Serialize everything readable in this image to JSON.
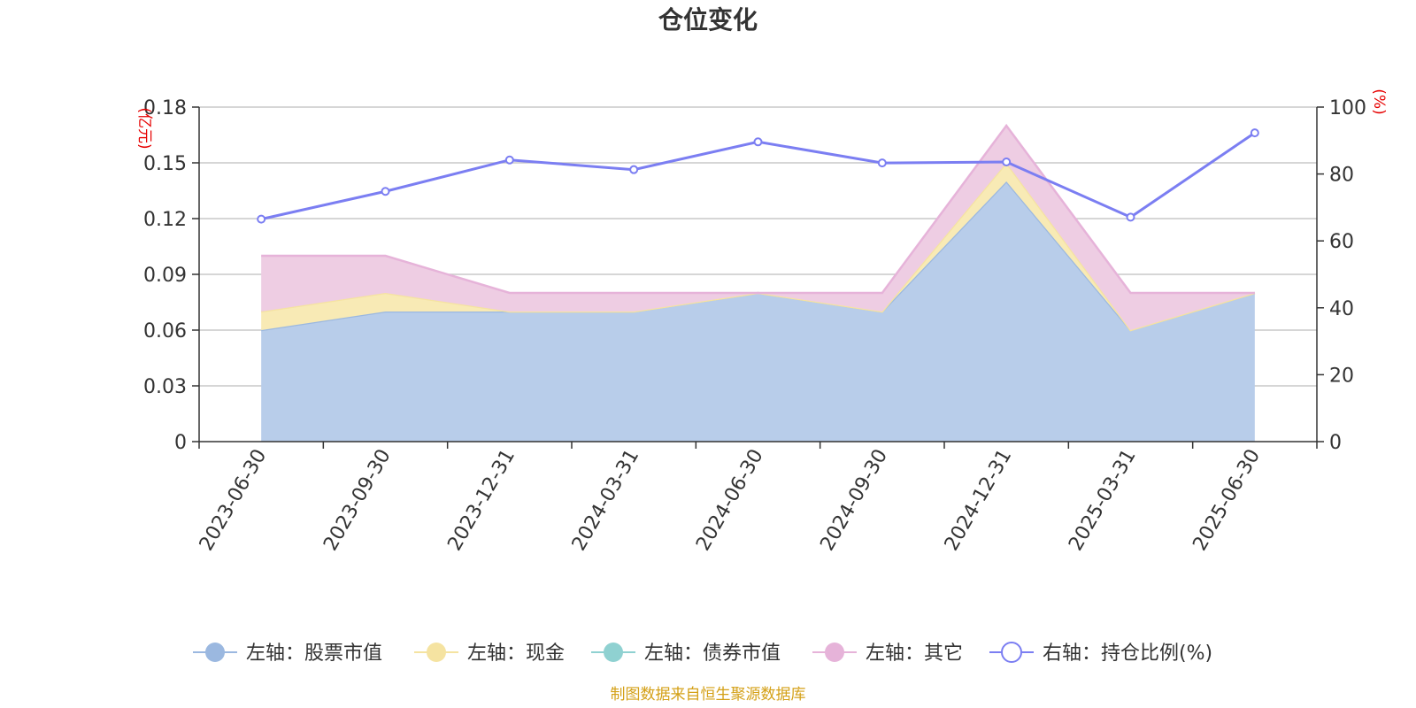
{
  "chart_data": {
    "type": "area",
    "title": "仓位变化",
    "categories": [
      "2023-06-30",
      "2023-09-30",
      "2023-12-31",
      "2024-03-31",
      "2024-06-30",
      "2024-09-30",
      "2024-12-31",
      "2025-03-31",
      "2025-06-30"
    ],
    "left_axis": {
      "unit": "(亿元)",
      "ticks": [
        "0",
        "0.03",
        "0.06",
        "0.09",
        "0.12",
        "0.15",
        "0.18"
      ],
      "ylim": [
        0,
        0.18
      ]
    },
    "right_axis": {
      "unit": "(%)",
      "ticks": [
        "0",
        "20",
        "40",
        "60",
        "80",
        "100"
      ],
      "ylim": [
        0,
        100
      ]
    },
    "series": [
      {
        "name": "左轴：股票市值",
        "axis": "left",
        "stack": true,
        "color": "#9bb8e0",
        "fill": "#b8cdea",
        "values": [
          0.06,
          0.07,
          0.07,
          0.07,
          0.08,
          0.07,
          0.14,
          0.06,
          0.08
        ]
      },
      {
        "name": "左轴：现金",
        "axis": "left",
        "stack": true,
        "color": "#f5e3a1",
        "fill": "#f8eab5",
        "values": [
          0.01,
          0.01,
          0.0,
          0.0,
          0.0,
          0.0,
          0.01,
          0.0,
          0.0
        ]
      },
      {
        "name": "左轴：债券市值",
        "axis": "left",
        "stack": true,
        "color": "#8fd1d1",
        "fill": "#b7e3e3",
        "values": [
          0,
          0,
          0,
          0,
          0,
          0,
          0,
          0,
          0
        ]
      },
      {
        "name": "左轴：其它",
        "axis": "left",
        "stack": true,
        "color": "#e6b3d9",
        "fill": "#eecde3",
        "values": [
          0.03,
          0.02,
          0.01,
          0.01,
          0.0,
          0.01,
          0.02,
          0.02,
          0.0
        ]
      },
      {
        "name": "右轴：持仓比例(%)",
        "axis": "right",
        "stack": false,
        "color": "#7b7ef2",
        "values": [
          66.5,
          74.8,
          84.2,
          81.3,
          89.6,
          83.3,
          83.6,
          67.1,
          92.3
        ]
      }
    ],
    "grid": true,
    "legend_position": "bottom"
  },
  "footer": "制图数据来自恒生聚源数据库"
}
